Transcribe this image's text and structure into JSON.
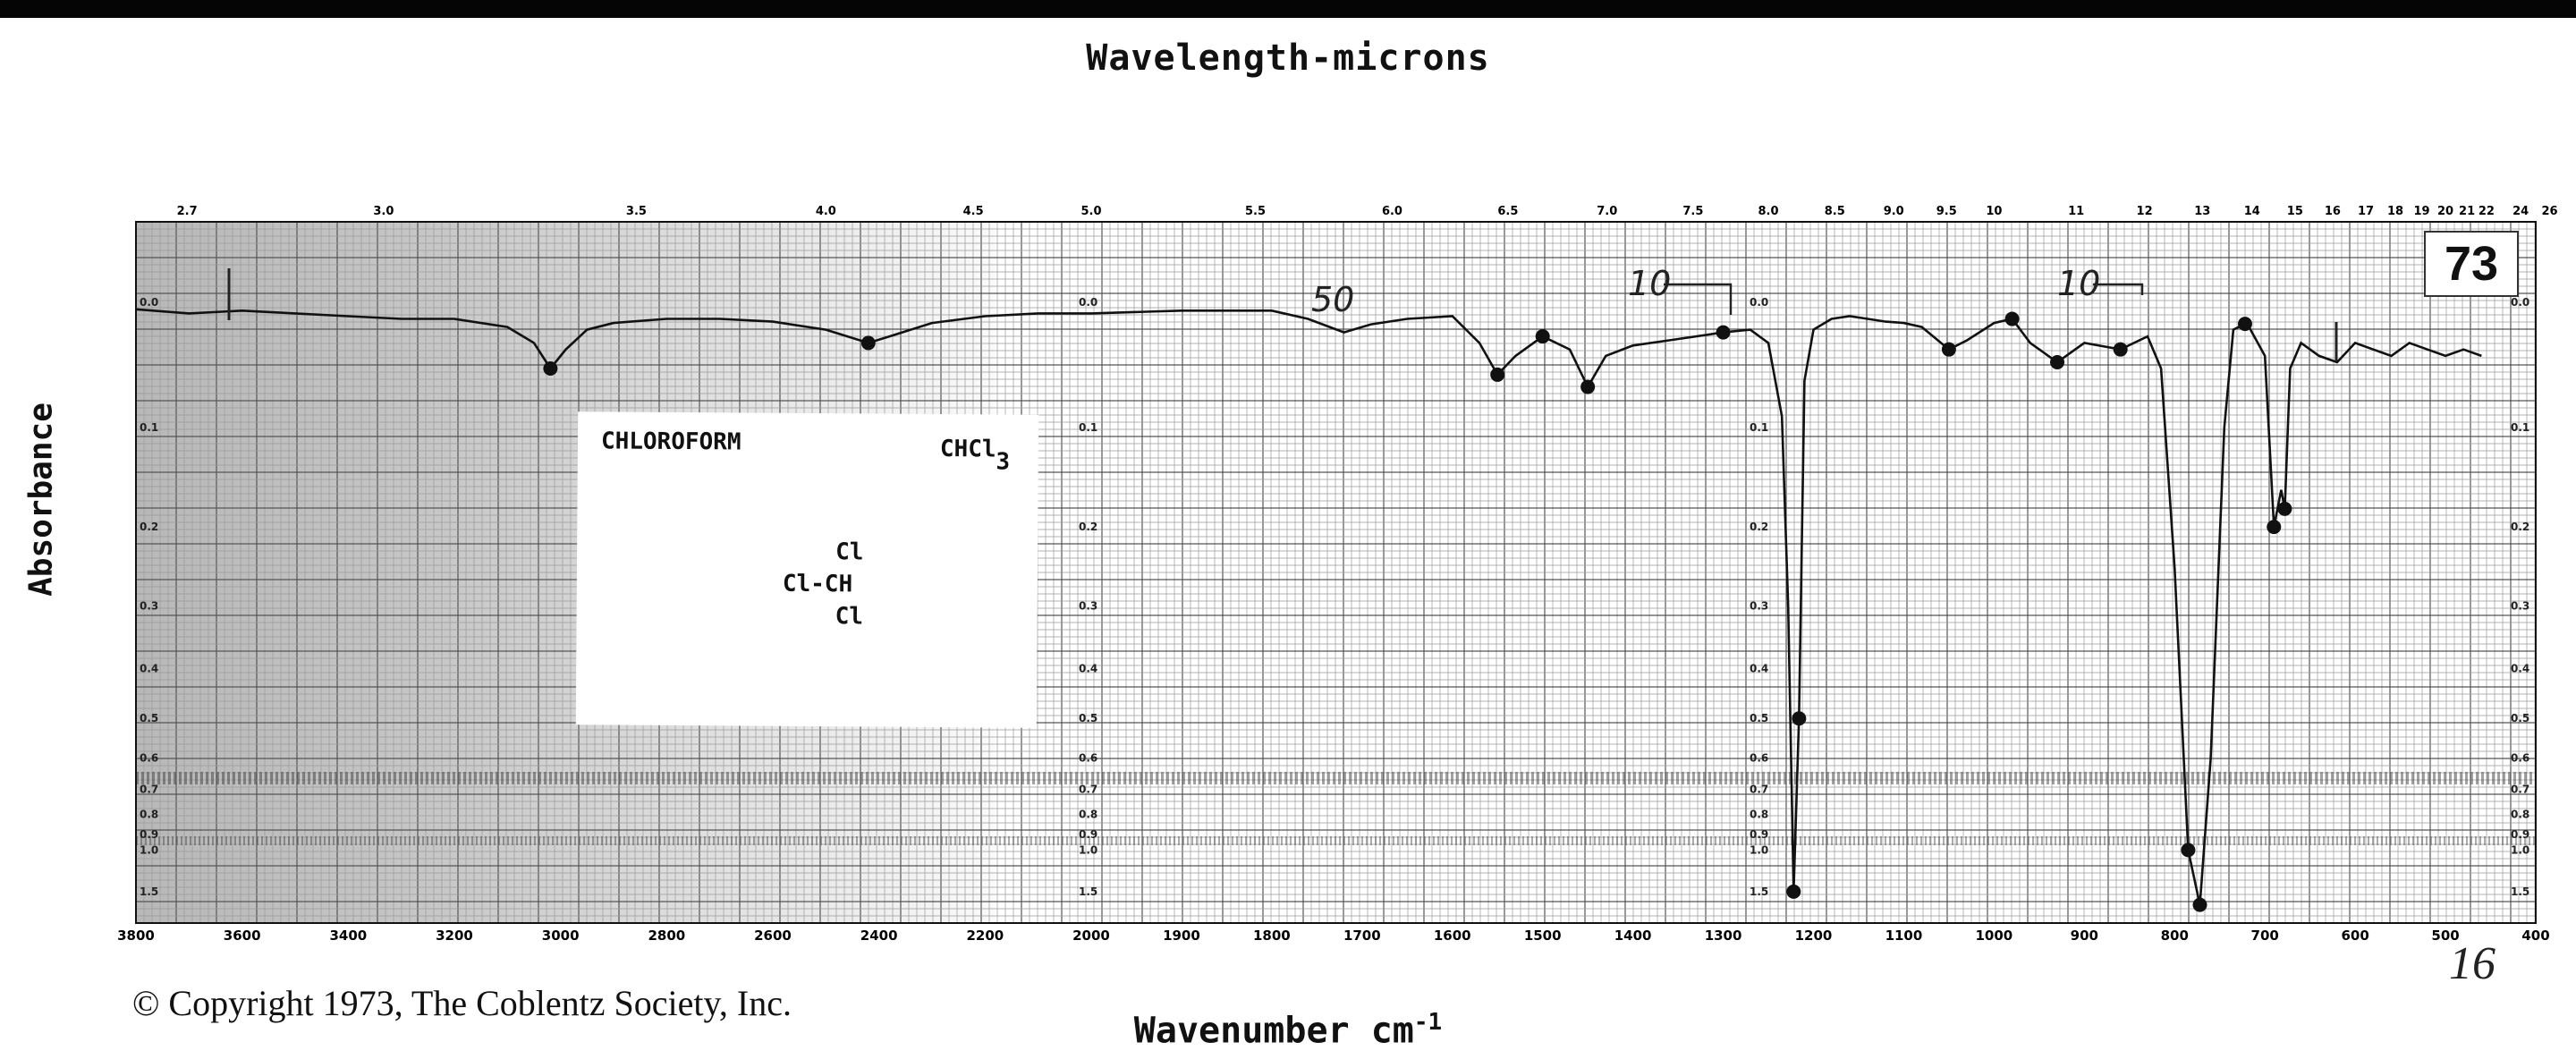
{
  "header": {
    "bar_color": "#050505"
  },
  "labels": {
    "top_axis_title": "Wavelength-microns",
    "bottom_axis_title": "Wavenumber cm",
    "bottom_axis_title_sup": "-1",
    "y_axis_title": "Absorbance",
    "copyright": "© Copyright 1973, The Coblentz Society, Inc.",
    "spectrum_number": "73",
    "handwritten_total": "16"
  },
  "compound": {
    "name": "CHLOROFORM",
    "formula_main": "CHCl",
    "formula_sub": "3",
    "structure": {
      "top": "Cl",
      "middle": "Cl-CH",
      "bottom": "Cl"
    }
  },
  "chart_data": {
    "type": "line",
    "title": "",
    "xlabel": "Wavenumber cm-1",
    "x2label": "Wavelength-microns",
    "ylabel": "Absorbance",
    "x_ranges": [
      {
        "from": 3800,
        "to": 2000,
        "ticks": [
          "3800",
          "3600",
          "3400",
          "3200",
          "3000",
          "2800",
          "2600",
          "2400",
          "2200",
          "2000"
        ]
      },
      {
        "from": 2000,
        "to": 400,
        "ticks": [
          "1900",
          "1800",
          "1700",
          "1600",
          "1500",
          "1400",
          "1300",
          "1200",
          "1100",
          "1000",
          "900",
          "800",
          "700",
          "600",
          "500",
          "400"
        ]
      }
    ],
    "microns_ticks": [
      "2.7",
      "3.0",
      "3.5",
      "4.0",
      "4.5",
      "5.0",
      "5.5",
      "6.0",
      "6.5",
      "7.0",
      "7.5",
      "8.0",
      "8.5",
      "9.0",
      "9.5",
      "10",
      "11",
      "12",
      "13",
      "14",
      "15",
      "16",
      "17",
      "18",
      "19",
      "20",
      "21",
      "22",
      "24",
      "26"
    ],
    "absorbance_ticks": [
      "0.0",
      "0.1",
      "0.2",
      "0.3",
      "0.4",
      "0.5",
      "0.6",
      "0.7",
      "0.8",
      "0.9",
      "1.0",
      "1.5"
    ],
    "absorbance_ticks_mid": [
      "0.0",
      "0.1",
      "0.2",
      "0.3",
      "0.4",
      "0.5",
      "0.6",
      "0.7",
      "0.8",
      "0.9",
      "1.0",
      "1.5"
    ],
    "series": [
      {
        "values": [
          [
            3800,
            0.005
          ],
          [
            3700,
            0.008
          ],
          [
            3600,
            0.006
          ],
          [
            3500,
            0.008
          ],
          [
            3400,
            0.01
          ],
          [
            3300,
            0.012
          ],
          [
            3200,
            0.012
          ],
          [
            3100,
            0.018
          ],
          [
            3050,
            0.03
          ],
          [
            3019,
            0.05
          ],
          [
            2990,
            0.035
          ],
          [
            2950,
            0.02
          ],
          [
            2900,
            0.015
          ],
          [
            2800,
            0.012
          ],
          [
            2700,
            0.012
          ],
          [
            2600,
            0.014
          ],
          [
            2500,
            0.02
          ],
          [
            2420,
            0.03
          ],
          [
            2380,
            0.025
          ],
          [
            2300,
            0.015
          ],
          [
            2200,
            0.01
          ],
          [
            2100,
            0.008
          ],
          [
            2000,
            0.008
          ],
          [
            1900,
            0.006
          ],
          [
            1800,
            0.006
          ],
          [
            1760,
            0.012
          ],
          [
            1720,
            0.022
          ],
          [
            1690,
            0.016
          ],
          [
            1650,
            0.012
          ],
          [
            1600,
            0.01
          ],
          [
            1570,
            0.03
          ],
          [
            1550,
            0.055
          ],
          [
            1530,
            0.04
          ],
          [
            1500,
            0.025
          ],
          [
            1470,
            0.035
          ],
          [
            1450,
            0.065
          ],
          [
            1430,
            0.04
          ],
          [
            1400,
            0.032
          ],
          [
            1360,
            0.028
          ],
          [
            1320,
            0.024
          ],
          [
            1300,
            0.022
          ],
          [
            1270,
            0.02
          ],
          [
            1250,
            0.03
          ],
          [
            1235,
            0.09
          ],
          [
            1228,
            0.3
          ],
          [
            1222,
            1.5
          ],
          [
            1216,
            0.5
          ],
          [
            1210,
            0.06
          ],
          [
            1200,
            0.02
          ],
          [
            1180,
            0.012
          ],
          [
            1160,
            0.01
          ],
          [
            1140,
            0.012
          ],
          [
            1120,
            0.014
          ],
          [
            1100,
            0.015
          ],
          [
            1080,
            0.018
          ],
          [
            1050,
            0.035
          ],
          [
            1030,
            0.028
          ],
          [
            1000,
            0.015
          ],
          [
            980,
            0.012
          ],
          [
            960,
            0.03
          ],
          [
            930,
            0.045
          ],
          [
            900,
            0.03
          ],
          [
            860,
            0.035
          ],
          [
            830,
            0.025
          ],
          [
            815,
            0.05
          ],
          [
            800,
            0.25
          ],
          [
            785,
            1.0
          ],
          [
            772,
            2.0
          ],
          [
            760,
            0.6
          ],
          [
            745,
            0.1
          ],
          [
            735,
            0.02
          ],
          [
            720,
            0.015
          ],
          [
            700,
            0.04
          ],
          [
            690,
            0.2
          ],
          [
            682,
            0.16
          ],
          [
            678,
            0.18
          ],
          [
            672,
            0.05
          ],
          [
            660,
            0.03
          ],
          [
            640,
            0.04
          ],
          [
            620,
            0.045
          ],
          [
            600,
            0.03
          ],
          [
            580,
            0.035
          ],
          [
            560,
            0.04
          ],
          [
            540,
            0.03
          ],
          [
            520,
            0.035
          ],
          [
            500,
            0.04
          ],
          [
            480,
            0.035
          ],
          [
            460,
            0.04
          ]
        ]
      }
    ],
    "annotations": [
      "50",
      "10",
      "10"
    ],
    "grid": true,
    "legend": "none",
    "line_color": "#111111"
  }
}
